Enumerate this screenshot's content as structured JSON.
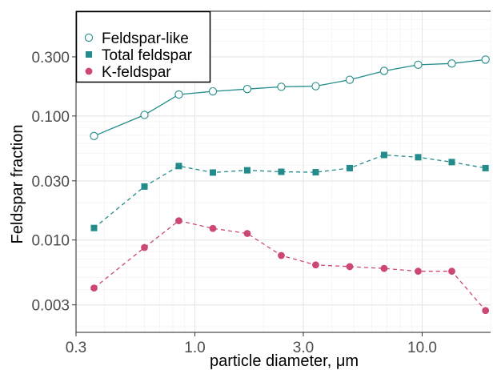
{
  "chart_data": {
    "type": "line",
    "title": "",
    "xlabel": "particle diameter, μm",
    "ylabel": "Feldspar fraction",
    "x_scale": "log",
    "y_scale": "log",
    "xlim": [
      0.3,
      20
    ],
    "ylim": [
      0.0018,
      0.7
    ],
    "x_ticks": [
      {
        "value": 0.3,
        "label": "0.3"
      },
      {
        "value": 1.0,
        "label": "1.0"
      },
      {
        "value": 3.0,
        "label": "3.0"
      },
      {
        "value": 10.0,
        "label": "10.0"
      }
    ],
    "y_ticks": [
      {
        "value": 0.003,
        "label": "0.003"
      },
      {
        "value": 0.01,
        "label": "0.010"
      },
      {
        "value": 0.03,
        "label": "0.030"
      },
      {
        "value": 0.1,
        "label": "0.100"
      },
      {
        "value": 0.3,
        "label": "0.300"
      }
    ],
    "grid": true,
    "legend_position": "top-left",
    "x": [
      0.36,
      0.6,
      0.85,
      1.2,
      1.7,
      2.4,
      3.4,
      4.8,
      6.8,
      9.6,
      13.5,
      19
    ],
    "series": [
      {
        "name": "Feldspar-like",
        "marker": "open-circle",
        "line": "solid",
        "color": "#238b8b",
        "values": [
          0.069,
          0.102,
          0.149,
          0.158,
          0.165,
          0.172,
          0.174,
          0.196,
          0.231,
          0.259,
          0.265,
          0.285
        ]
      },
      {
        "name": "Total feldspar",
        "marker": "square",
        "line": "dashed",
        "color": "#238b8b",
        "values": [
          0.0125,
          0.027,
          0.0395,
          0.035,
          0.0365,
          0.0355,
          0.0352,
          0.038,
          0.0485,
          0.0465,
          0.0425,
          0.038
        ]
      },
      {
        "name": "K-feldspar",
        "marker": "circle",
        "line": "dashed",
        "color": "#cc4775",
        "values": [
          0.0041,
          0.0087,
          0.0143,
          0.0124,
          0.0113,
          0.0075,
          0.0063,
          0.0061,
          0.0059,
          0.0056,
          0.0056,
          0.0027
        ]
      }
    ]
  }
}
